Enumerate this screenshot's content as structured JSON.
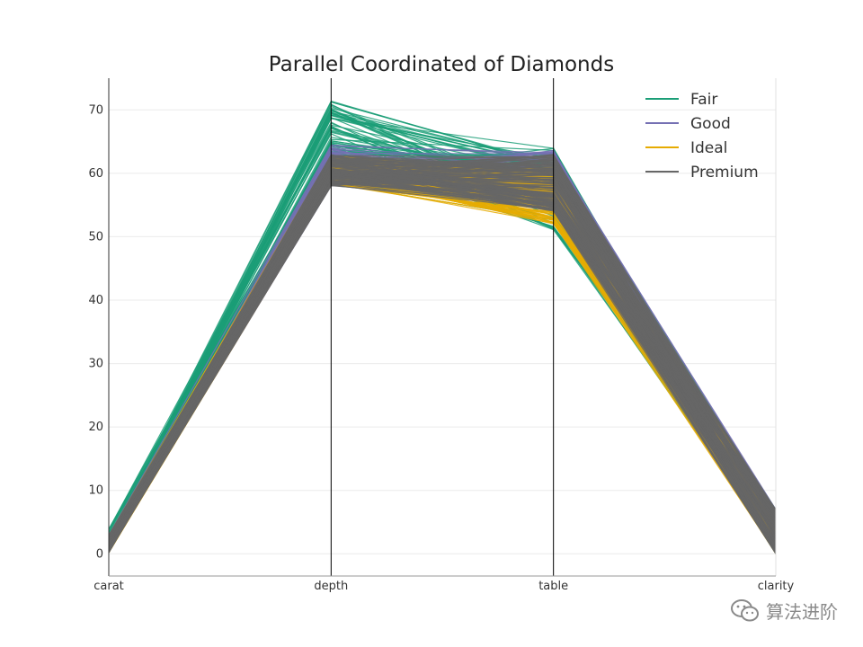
{
  "chart_data": {
    "type": "parallel_coordinates",
    "title": "Parallel Coordinated of Diamonds",
    "axes": [
      "carat",
      "depth",
      "table",
      "clarity"
    ],
    "ylim": [
      -3.5,
      75
    ],
    "yticks": [
      0,
      10,
      20,
      30,
      40,
      50,
      60,
      70
    ],
    "grid": true,
    "legend_position": "top-right",
    "series": [
      {
        "name": "Fair",
        "color": "#1b9e77",
        "depth_range": [
          58,
          71.5
        ],
        "table_range": [
          51,
          64
        ],
        "clarity_range": [
          0,
          7
        ],
        "carat_range": [
          0.2,
          4
        ]
      },
      {
        "name": "Good",
        "color": "#7570b3",
        "depth_range": [
          58,
          64.5
        ],
        "table_range": [
          54,
          64
        ],
        "clarity_range": [
          0,
          7
        ],
        "carat_range": [
          0.2,
          3
        ]
      },
      {
        "name": "Ideal",
        "color": "#e6ab02",
        "depth_range": [
          58,
          63
        ],
        "table_range": [
          52,
          61
        ],
        "clarity_range": [
          0,
          7
        ],
        "carat_range": [
          0.2,
          3
        ]
      },
      {
        "name": "Premium",
        "color": "#666666",
        "depth_range": [
          58,
          63
        ],
        "table_range": [
          54,
          63
        ],
        "clarity_range": [
          0,
          7
        ],
        "carat_range": [
          0.2,
          3
        ]
      }
    ]
  },
  "watermark": {
    "text": "算法进阶",
    "icon": "wechat-icon"
  }
}
